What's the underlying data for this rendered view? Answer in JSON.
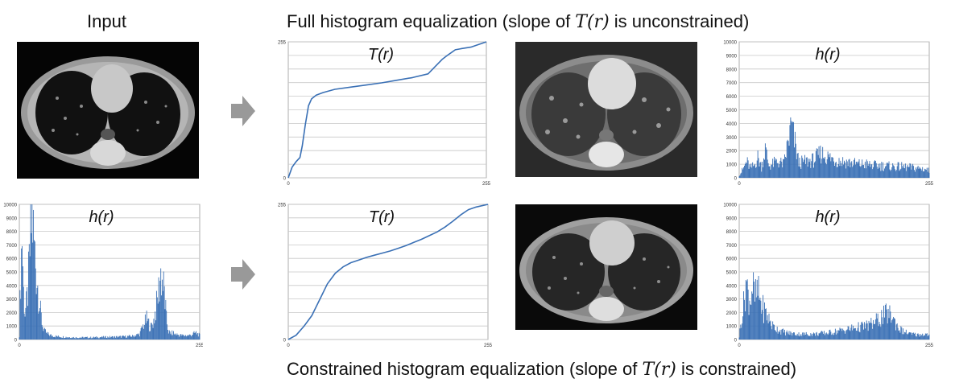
{
  "labels": {
    "input": "Input",
    "top_title_pre": "Full histogram equalization (slope of ",
    "top_title_math": "T(r)",
    "top_title_post": " is unconstrained)",
    "bottom_title_pre": "Constrained histogram equalization (slope of ",
    "bottom_title_math": "T(r)",
    "bottom_title_post": " is constrained)"
  },
  "colors": {
    "series": "#3a70b5",
    "grid": "#c8c8c8",
    "axis": "#999999",
    "arrow": "#999999"
  },
  "chart_data": [
    {
      "id": "input-hist",
      "type": "bar",
      "title": "h(r)",
      "xlim": [
        0,
        255
      ],
      "ylim": [
        0,
        10000
      ],
      "xticks": [
        "0",
        "255"
      ],
      "yticks": [
        "0",
        "1000",
        "2000",
        "3000",
        "4000",
        "5000",
        "6000",
        "7000",
        "8000",
        "9000",
        "10000"
      ],
      "x": [
        0,
        2,
        4,
        6,
        8,
        10,
        12,
        15,
        18,
        21,
        24,
        27,
        30,
        33,
        36,
        40,
        45,
        50,
        60,
        80,
        100,
        120,
        140,
        160,
        170,
        175,
        180,
        183,
        186,
        190,
        195,
        200,
        205,
        208,
        211,
        214,
        217,
        220,
        225,
        230,
        240,
        250,
        255
      ],
      "values": [
        300,
        5000,
        7800,
        3500,
        2000,
        2500,
        3500,
        6500,
        9300,
        7000,
        5000,
        3500,
        2000,
        1000,
        600,
        400,
        300,
        250,
        200,
        150,
        150,
        180,
        200,
        250,
        400,
        1000,
        1500,
        1200,
        900,
        1400,
        2800,
        4900,
        3500,
        1500,
        600,
        400,
        500,
        400,
        350,
        300,
        300,
        500,
        300
      ]
    },
    {
      "id": "full-transform",
      "type": "line",
      "title": "T(r)",
      "xlim": [
        0,
        255
      ],
      "ylim": [
        0,
        255
      ],
      "xticks": [
        "0",
        "255"
      ],
      "yticks": [
        "0",
        "255"
      ],
      "x": [
        0,
        5,
        10,
        15,
        18,
        22,
        26,
        30,
        36,
        45,
        60,
        80,
        100,
        120,
        140,
        160,
        180,
        190,
        198,
        205,
        210,
        215,
        222,
        235,
        255
      ],
      "values": [
        0,
        20,
        30,
        38,
        60,
        100,
        135,
        148,
        155,
        160,
        166,
        170,
        174,
        178,
        183,
        188,
        195,
        210,
        222,
        230,
        235,
        240,
        242,
        245,
        255
      ]
    },
    {
      "id": "full-hist",
      "type": "bar",
      "title": "h(r)",
      "xlim": [
        0,
        255
      ],
      "ylim": [
        0,
        10000
      ],
      "xticks": [
        "0",
        "255"
      ],
      "yticks": [
        "0",
        "1000",
        "2000",
        "3000",
        "4000",
        "5000",
        "6000",
        "7000",
        "8000",
        "9000",
        "10000"
      ],
      "x": [
        0,
        5,
        10,
        15,
        20,
        25,
        30,
        35,
        40,
        45,
        50,
        60,
        70,
        80,
        90,
        100,
        110,
        120,
        130,
        140,
        150,
        160,
        170,
        180,
        190,
        200,
        210,
        220,
        230,
        240,
        250,
        255
      ],
      "values": [
        200,
        600,
        1200,
        700,
        900,
        1500,
        800,
        2100,
        900,
        1000,
        1200,
        1000,
        3800,
        1100,
        1200,
        1300,
        1800,
        1500,
        1300,
        1200,
        1100,
        1000,
        1000,
        900,
        900,
        850,
        800,
        800,
        750,
        700,
        650,
        500
      ]
    },
    {
      "id": "constrained-transform",
      "type": "line",
      "title": "T(r)",
      "xlim": [
        0,
        255
      ],
      "ylim": [
        0,
        255
      ],
      "xticks": [
        "0",
        "255"
      ],
      "yticks": [
        "0",
        "255"
      ],
      "x": [
        0,
        10,
        20,
        30,
        40,
        50,
        60,
        70,
        80,
        90,
        100,
        110,
        120,
        130,
        140,
        150,
        160,
        170,
        180,
        190,
        200,
        210,
        220,
        230,
        240,
        255
      ],
      "values": [
        0,
        8,
        25,
        45,
        75,
        105,
        125,
        137,
        145,
        150,
        155,
        159,
        163,
        167,
        172,
        177,
        183,
        189,
        196,
        203,
        212,
        223,
        235,
        245,
        250,
        255
      ]
    },
    {
      "id": "constrained-hist",
      "type": "bar",
      "title": "h(r)",
      "xlim": [
        0,
        255
      ],
      "ylim": [
        0,
        10000
      ],
      "xticks": [
        "0",
        "255"
      ],
      "yticks": [
        "0",
        "1000",
        "2000",
        "3000",
        "4000",
        "5000",
        "6000",
        "7000",
        "8000",
        "9000",
        "10000"
      ],
      "x": [
        0,
        3,
        6,
        9,
        12,
        15,
        18,
        21,
        24,
        27,
        30,
        35,
        40,
        45,
        50,
        60,
        70,
        80,
        90,
        100,
        110,
        120,
        130,
        140,
        150,
        160,
        170,
        180,
        190,
        195,
        200,
        205,
        210,
        215,
        220,
        230,
        240,
        250,
        255
      ],
      "values": [
        200,
        1500,
        2500,
        4400,
        3300,
        3000,
        4000,
        3000,
        3500,
        3200,
        2500,
        2000,
        1500,
        1000,
        800,
        550,
        450,
        400,
        400,
        400,
        450,
        500,
        600,
        700,
        800,
        900,
        1000,
        1200,
        1600,
        1800,
        1900,
        1700,
        1200,
        800,
        600,
        400,
        350,
        400,
        300
      ]
    }
  ]
}
